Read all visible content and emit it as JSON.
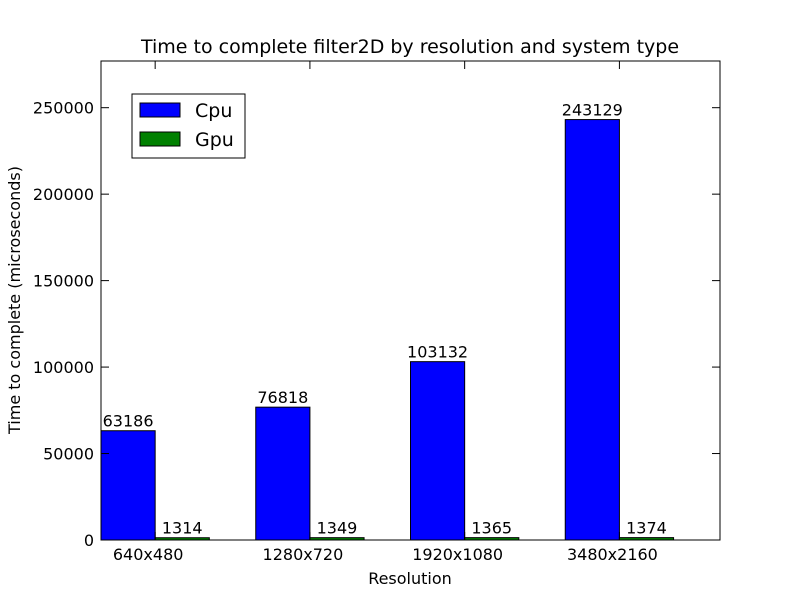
{
  "chart_data": {
    "type": "bar",
    "title": "Time to complete filter2D by resolution and system type",
    "xlabel": "Resolution",
    "ylabel": "Time to complete (microseconds)",
    "categories": [
      "640x480",
      "1280x720",
      "1920x1080",
      "3480x2160"
    ],
    "series": [
      {
        "name": "Cpu",
        "values": [
          63186,
          76818,
          103132,
          243129
        ],
        "color": "#0000ff"
      },
      {
        "name": "Gpu",
        "values": [
          1314,
          1349,
          1365,
          1374
        ],
        "color": "#008000"
      }
    ],
    "ylim": [
      0,
      277000
    ],
    "yticks": [
      0,
      50000,
      100000,
      150000,
      200000,
      250000
    ],
    "legend_position": "top-left",
    "grid": false
  }
}
